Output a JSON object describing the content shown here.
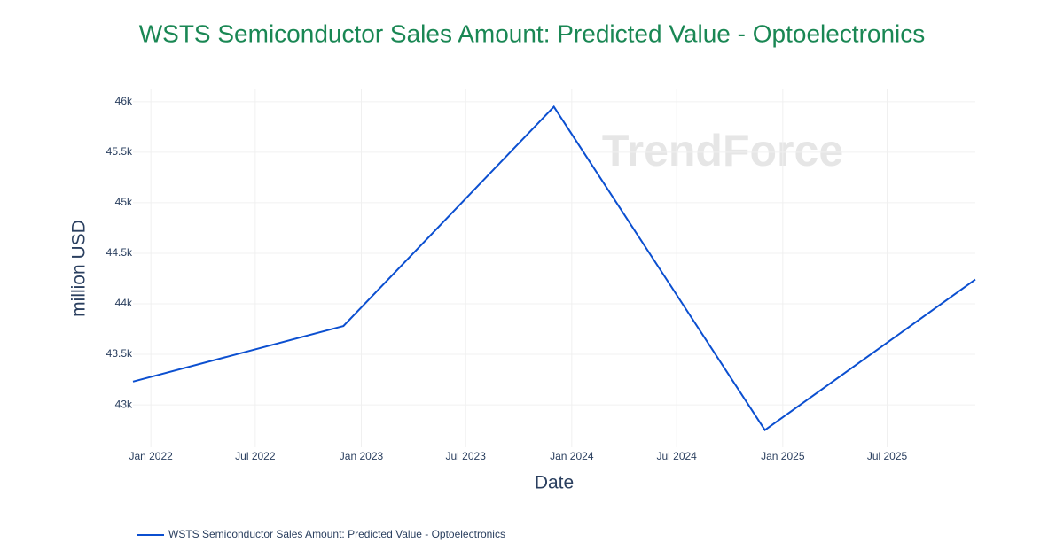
{
  "chart_data": {
    "type": "line",
    "title": "WSTS Semiconductor Sales Amount: Predicted Value - Optoelectronics",
    "watermark": "TrendForce",
    "x_label": "Date",
    "y_label": "million USD",
    "x": [
      "2021-12",
      "2022-12",
      "2023-12",
      "2024-12",
      "2025-12"
    ],
    "series": [
      {
        "name": "WSTS Semiconductor Sales Amount: Predicted Value - Optoelectronics",
        "color": "#0b4fd0",
        "values": [
          43230,
          43780,
          45950,
          42750,
          44240
        ]
      }
    ],
    "xlim": [
      "2021-12",
      "2025-12"
    ],
    "xticks": [
      {
        "value": "2022-01",
        "label": "Jan 2022"
      },
      {
        "value": "2022-07",
        "label": "Jul 2022"
      },
      {
        "value": "2023-01",
        "label": "Jan 2023"
      },
      {
        "value": "2023-07",
        "label": "Jul 2023"
      },
      {
        "value": "2024-01",
        "label": "Jan 2024"
      },
      {
        "value": "2024-07",
        "label": "Jul 2024"
      },
      {
        "value": "2025-01",
        "label": "Jan 2025"
      },
      {
        "value": "2025-07",
        "label": "Jul 2025"
      }
    ],
    "ylim": [
      42580,
      46130
    ],
    "yticks": [
      {
        "value": 43000,
        "label": "43k"
      },
      {
        "value": 43500,
        "label": "43.5k"
      },
      {
        "value": 44000,
        "label": "44k"
      },
      {
        "value": 44500,
        "label": "44.5k"
      },
      {
        "value": 45000,
        "label": "45k"
      },
      {
        "value": 45500,
        "label": "45.5k"
      },
      {
        "value": 46000,
        "label": "46k"
      }
    ],
    "grid": true,
    "legend": "bottom-left"
  }
}
